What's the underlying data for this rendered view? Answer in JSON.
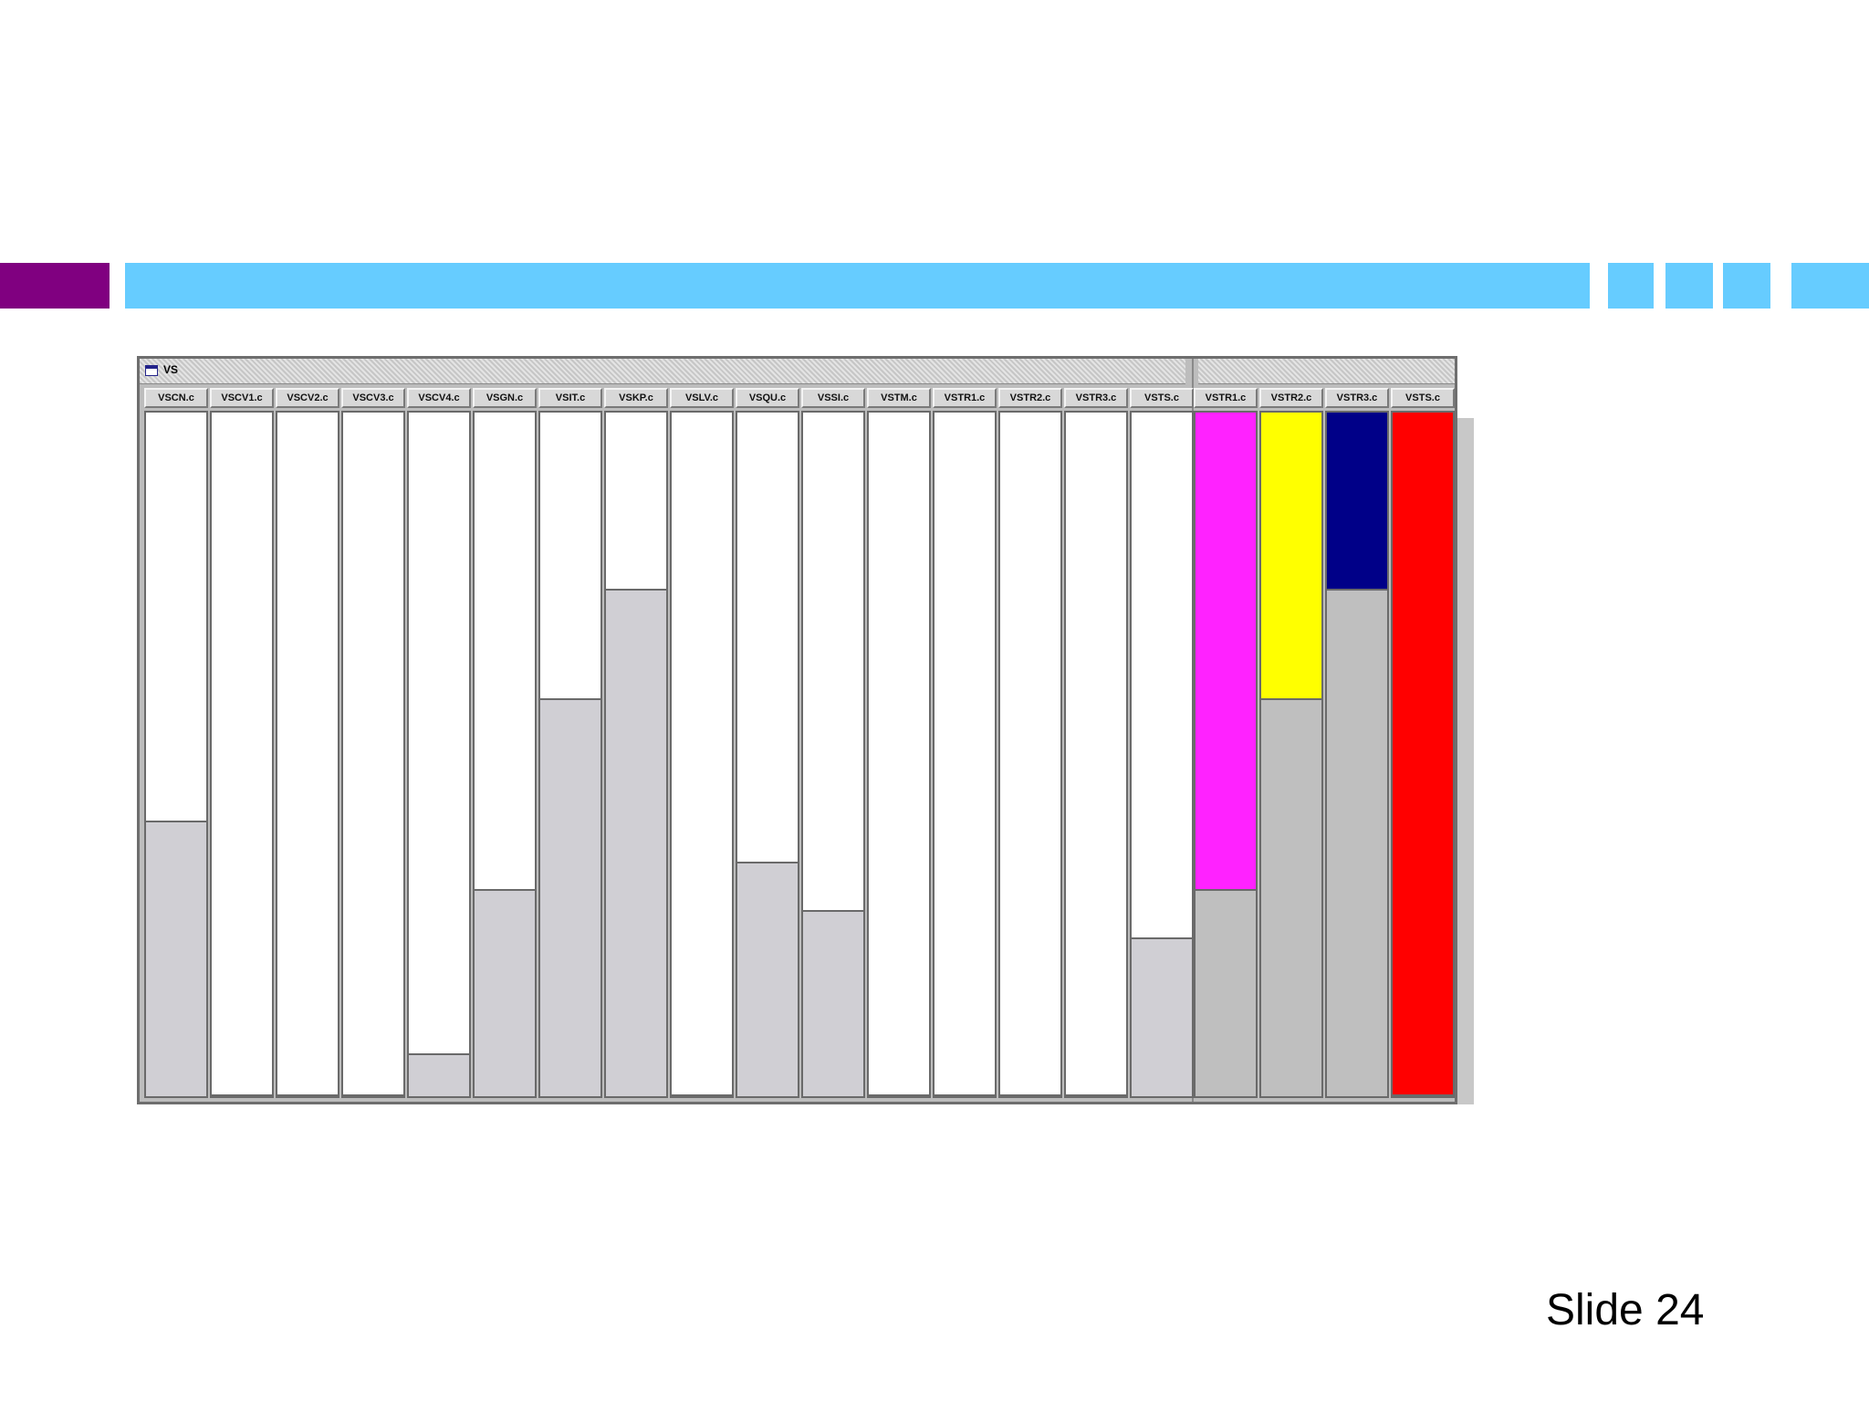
{
  "decor": {
    "colors": {
      "accent_purple": "#800080",
      "accent_blue": "#66ccff",
      "track_light": "#d0cfd4",
      "track_dark": "#bfbfbf"
    }
  },
  "window": {
    "title": "VS",
    "icon": "window-icon",
    "panels": [
      {
        "columns": [
          {
            "label": "VSCN.c",
            "fill_fraction": 0.6,
            "color": "#ffffff"
          },
          {
            "label": "VSCV1.c",
            "fill_fraction": 1.0,
            "color": "#ffffff"
          },
          {
            "label": "VSCV2.c",
            "fill_fraction": 1.0,
            "color": "#ffffff"
          },
          {
            "label": "VSCV3.c",
            "fill_fraction": 1.0,
            "color": "#ffffff"
          },
          {
            "label": "VSCV4.c",
            "fill_fraction": 0.94,
            "color": "#ffffff"
          },
          {
            "label": "VSGN.c",
            "fill_fraction": 0.7,
            "color": "#ffffff"
          },
          {
            "label": "VSIT.c",
            "fill_fraction": 0.42,
            "color": "#ffffff"
          },
          {
            "label": "VSKP.c",
            "fill_fraction": 0.26,
            "color": "#ffffff"
          },
          {
            "label": "VSLV.c",
            "fill_fraction": 1.0,
            "color": "#ffffff"
          },
          {
            "label": "VSQU.c",
            "fill_fraction": 0.66,
            "color": "#ffffff"
          },
          {
            "label": "VSSI.c",
            "fill_fraction": 0.73,
            "color": "#ffffff"
          },
          {
            "label": "VSTM.c",
            "fill_fraction": 1.0,
            "color": "#ffffff"
          },
          {
            "label": "VSTR1.c",
            "fill_fraction": 1.0,
            "color": "#ffffff"
          },
          {
            "label": "VSTR2.c",
            "fill_fraction": 1.0,
            "color": "#ffffff"
          },
          {
            "label": "VSTR3.c",
            "fill_fraction": 1.0,
            "color": "#ffffff"
          },
          {
            "label": "VSTS.c",
            "fill_fraction": 0.77,
            "color": "#ffffff"
          }
        ]
      },
      {
        "columns": [
          {
            "label": "VSTR1.c",
            "fill_fraction": 0.7,
            "color": "#ff22ff"
          },
          {
            "label": "VSTR2.c",
            "fill_fraction": 0.42,
            "color": "#ffff00"
          },
          {
            "label": "VSTR3.c",
            "fill_fraction": 0.26,
            "color": "#000088"
          },
          {
            "label": "VSTS.c",
            "fill_fraction": 1.0,
            "color": "#ff0000"
          }
        ]
      }
    ]
  },
  "footer": {
    "slide_label": "Slide 24"
  }
}
